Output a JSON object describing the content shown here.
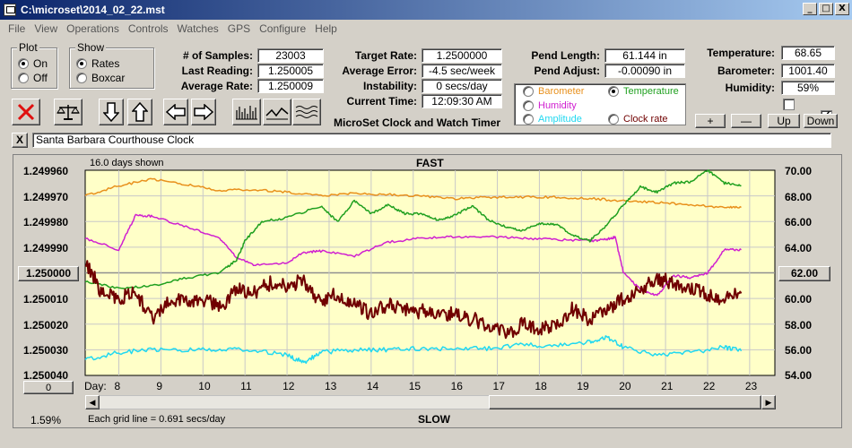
{
  "window": {
    "title": "C:\\microset\\2014_02_22.mst",
    "min": "_",
    "max": "□",
    "close": "X"
  },
  "menu": [
    "File",
    "View",
    "Operations",
    "Controls",
    "Watches",
    "GPS",
    "Configure",
    "Help"
  ],
  "plot_group": {
    "title": "Plot",
    "on": "On",
    "off": "Off",
    "selected": "on"
  },
  "show_group": {
    "title": "Show",
    "rates": "Rates",
    "boxcar": "Boxcar",
    "selected": "rates"
  },
  "stats": {
    "samples_label": "# of Samples:",
    "samples": "23003",
    "last_label": "Last Reading:",
    "last": "1.250005",
    "avg_label": "Average Rate:",
    "avg": "1.250009"
  },
  "rates": {
    "target_label": "Target Rate:",
    "target": "1.2500000",
    "avgerr_label": "Average Error:",
    "avgerr": "-4.5 sec/week",
    "instab_label": "Instability:",
    "instab": "0 secs/day",
    "time_label": "Current Time:",
    "time": "12:09:30 AM"
  },
  "pendulum": {
    "length_label": "Pend Length:",
    "length": "61.144 in",
    "adjust_label": "Pend Adjust:",
    "adjust": "-0.00090 in"
  },
  "sensors": {
    "temp_label": "Temperature:",
    "temp": "68.65",
    "baro_label": "Barometer:",
    "baro": "1001.40",
    "hum_label": "Humidity:",
    "hum": "59%"
  },
  "sensor_select": {
    "barometer": "Barometer",
    "temperature": "Temperature",
    "humidity": "Humidity",
    "amplitude": "Amplitude",
    "clockrate": "Clock rate",
    "selected": "temperature"
  },
  "colors": {
    "barometer": "#e8901c",
    "temperature": "#20a020",
    "humidity": "#d020d0",
    "amplitude": "#20d8f0",
    "clockrate": "#700000",
    "plotbg": "#ffffc8"
  },
  "adjust_buttons": {
    "plus": "+",
    "minus": "—",
    "up": "Up",
    "down": "Down"
  },
  "app_caption": "MicroSet Clock and Watch Timer",
  "clock_name": "Santa Barbara Courthouse Clock",
  "clear_button": "X",
  "plot": {
    "days_shown": "16.0 days shown",
    "fast": "FAST",
    "slow": "SLOW",
    "day_label": "Day:",
    "grid_note": "Each grid line = 0.691 secs/day",
    "percent": "1.59%",
    "left_ticks": [
      "1.249960",
      "1.249970",
      "1.249980",
      "1.249990",
      "1.250000",
      "1.250010",
      "1.250020",
      "1.250030",
      "1.250040"
    ],
    "right_ticks": [
      "70.00",
      "68.00",
      "66.00",
      "64.00",
      "62.00",
      "60.00",
      "58.00",
      "56.00",
      "54.00"
    ],
    "center_left": "1.250000",
    "center_right": "62.00",
    "scroll_left_value": "0",
    "days": [
      "8",
      "9",
      "10",
      "11",
      "12",
      "13",
      "14",
      "15",
      "16",
      "17",
      "18",
      "19",
      "20",
      "21",
      "22",
      "23"
    ]
  },
  "chart_data": {
    "type": "line",
    "x_range": [
      7.2,
      23.6
    ],
    "y_left_range": [
      1.24996,
      1.25004
    ],
    "y_left_inverted": true,
    "y_right_range": [
      54,
      70
    ],
    "series": [
      {
        "name": "Clock rate",
        "axis": "left",
        "x": [
          7.2,
          7.6,
          8.0,
          8.4,
          8.8,
          9.2,
          9.6,
          10.0,
          10.4,
          10.8,
          11.2,
          11.6,
          12.0,
          12.4,
          12.8,
          13.2,
          13.6,
          14.0,
          14.4,
          14.8,
          15.2,
          15.6,
          16.0,
          16.4,
          16.8,
          17.2,
          17.6,
          18.0,
          18.4,
          18.8,
          19.2,
          19.6,
          20.0,
          20.4,
          20.8,
          21.2,
          21.6,
          22.0,
          22.4,
          22.8
        ],
        "y": [
          1.249995,
          1.250008,
          1.25001,
          1.250008,
          1.250018,
          1.25001,
          1.250012,
          1.25001,
          1.250014,
          1.250006,
          1.250008,
          1.250004,
          1.250005,
          1.250003,
          1.250012,
          1.250008,
          1.250012,
          1.250016,
          1.250012,
          1.250014,
          1.250015,
          1.250016,
          1.250016,
          1.250018,
          1.25002,
          1.250024,
          1.25002,
          1.250022,
          1.25002,
          1.250014,
          1.250018,
          1.250014,
          1.25001,
          1.250006,
          1.250002,
          1.250004,
          1.250006,
          1.250008,
          1.25001,
          1.250008
        ]
      },
      {
        "name": "Barometer",
        "axis": "right",
        "x": [
          7.2,
          8.0,
          8.8,
          9.6,
          10.4,
          11.2,
          12.0,
          12.8,
          13.6,
          14.4,
          15.2,
          16.0,
          16.8,
          17.6,
          18.4,
          19.2,
          20.0,
          20.8,
          21.6,
          22.4,
          22.8
        ],
        "y": [
          68.0,
          68.8,
          69.3,
          68.9,
          68.4,
          68.5,
          68.3,
          68.0,
          68.2,
          68.1,
          68.0,
          67.8,
          67.9,
          67.9,
          67.9,
          67.8,
          67.6,
          67.5,
          67.3,
          67.1,
          67.1
        ]
      },
      {
        "name": "Temperature",
        "axis": "right",
        "x": [
          7.2,
          8.0,
          8.8,
          9.6,
          10.4,
          10.8,
          11.0,
          11.4,
          12.0,
          12.8,
          13.2,
          13.6,
          14.0,
          14.4,
          14.8,
          15.2,
          15.6,
          16.0,
          16.4,
          16.8,
          17.2,
          17.6,
          18.0,
          18.4,
          18.8,
          19.2,
          19.6,
          20.0,
          20.4,
          20.8,
          21.2,
          21.6,
          22.0,
          22.4,
          22.8
        ],
        "y": [
          61.3,
          60.8,
          61.0,
          61.6,
          62.0,
          63.0,
          64.5,
          66.0,
          66.3,
          67.2,
          66.0,
          67.6,
          66.6,
          67.3,
          66.6,
          66.6,
          66.1,
          66.5,
          67.2,
          66.1,
          65.6,
          65.3,
          65.8,
          65.8,
          64.9,
          64.5,
          65.7,
          67.3,
          68.7,
          68.3,
          69.0,
          69.1,
          70.0,
          69.0,
          68.8
        ]
      },
      {
        "name": "Humidity",
        "axis": "right",
        "x": [
          7.2,
          8.0,
          8.4,
          8.8,
          9.6,
          10.4,
          10.8,
          11.2,
          12.0,
          12.4,
          12.8,
          13.6,
          14.4,
          15.2,
          16.0,
          16.8,
          17.6,
          18.4,
          19.2,
          19.6,
          19.8,
          20.0,
          20.4,
          20.8,
          21.2,
          21.6,
          22.0,
          22.4,
          22.8
        ],
        "y": [
          64.7,
          63.8,
          66.5,
          66.4,
          65.6,
          64.7,
          63.2,
          62.6,
          62.8,
          63.6,
          63.7,
          63.3,
          64.4,
          64.7,
          64.8,
          64.8,
          64.7,
          64.6,
          64.5,
          64.6,
          64.8,
          62.0,
          60.7,
          60.2,
          61.8,
          61.6,
          62.0,
          63.8,
          63.8
        ]
      },
      {
        "name": "Amplitude",
        "axis": "right",
        "x": [
          7.2,
          8.0,
          8.8,
          9.6,
          10.4,
          11.2,
          12.0,
          12.4,
          12.8,
          13.6,
          14.4,
          15.2,
          16.0,
          16.8,
          17.6,
          18.4,
          19.2,
          19.6,
          20.0,
          20.8,
          21.6,
          22.4,
          22.8
        ],
        "y": [
          55.2,
          55.8,
          56.0,
          56.0,
          56.0,
          56.0,
          55.6,
          55.0,
          55.8,
          56.0,
          56.0,
          56.1,
          56.1,
          56.1,
          56.4,
          56.3,
          56.6,
          57.0,
          56.2,
          55.6,
          55.8,
          56.2,
          55.9
        ]
      }
    ]
  }
}
